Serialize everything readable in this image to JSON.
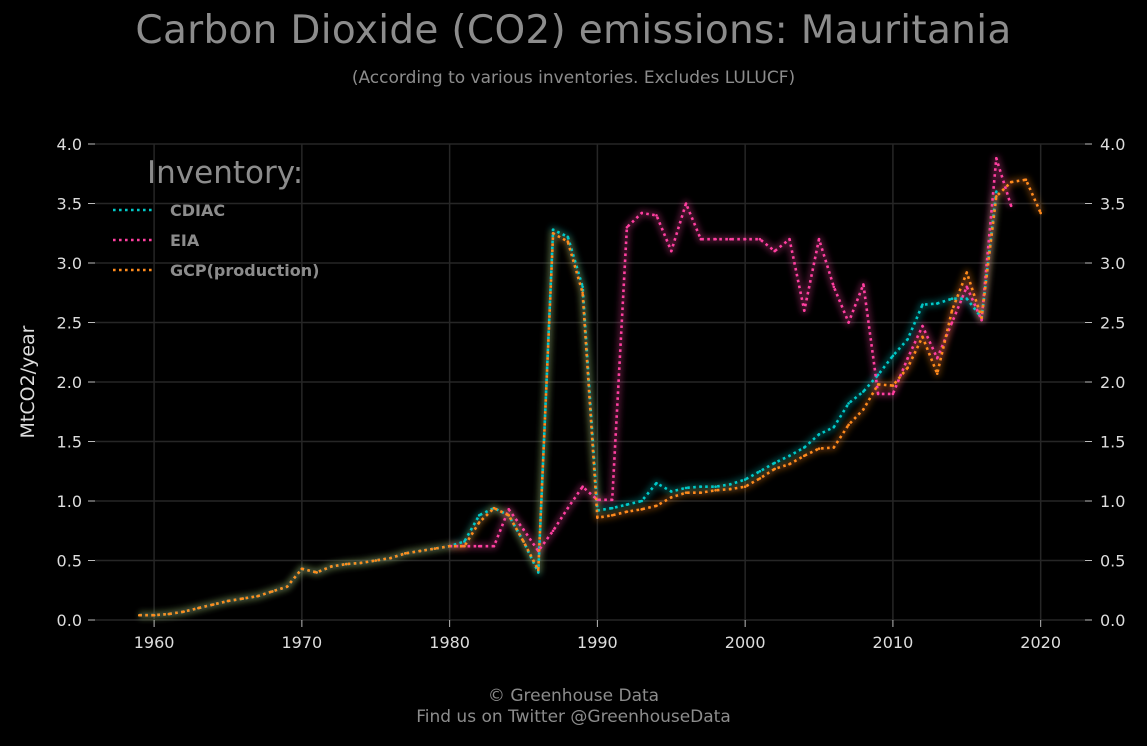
{
  "header": {
    "title": "Carbon Dioxide (CO2) emissions: Mauritania",
    "subtitle": "(According to various inventories. Excludes LULUCF)"
  },
  "footer": {
    "line1": "© Greenhouse Data",
    "line2": "Find us on Twitter @GreenhouseData"
  },
  "chart_data": {
    "type": "line",
    "title": "Carbon Dioxide (CO2) emissions: Mauritania",
    "subtitle": "(According to various inventories. Excludes LULUCF)",
    "xlabel": "",
    "ylabel": "MtCO2/year",
    "xlim": [
      1956,
      2023
    ],
    "ylim": [
      0,
      4
    ],
    "x_ticks": [
      1960,
      1970,
      1980,
      1990,
      2000,
      2010,
      2020
    ],
    "y_ticks": [
      "0.0",
      "0.5",
      "1.0",
      "1.5",
      "2.0",
      "2.5",
      "3.0",
      "3.5",
      "4.0"
    ],
    "grid": true,
    "legend": {
      "title": "Inventory:",
      "placement": "top-left"
    },
    "series": [
      {
        "name": "CDIAC",
        "color": "#00c8c8",
        "x": [
          1959,
          1960,
          1961,
          1962,
          1963,
          1964,
          1965,
          1966,
          1967,
          1968,
          1969,
          1970,
          1971,
          1972,
          1973,
          1974,
          1975,
          1976,
          1977,
          1978,
          1979,
          1980,
          1981,
          1982,
          1983,
          1984,
          1985,
          1986,
          1987,
          1988,
          1989,
          1990,
          1991,
          1992,
          1993,
          1994,
          1995,
          1996,
          1997,
          1998,
          1999,
          2000,
          2001,
          2002,
          2003,
          2004,
          2005,
          2006,
          2007,
          2008,
          2009,
          2010,
          2011,
          2012,
          2013,
          2014,
          2015,
          2016,
          2017
        ],
        "y": [
          0.04,
          0.04,
          0.05,
          0.07,
          0.1,
          0.13,
          0.16,
          0.18,
          0.2,
          0.24,
          0.28,
          0.43,
          0.4,
          0.45,
          0.47,
          0.48,
          0.5,
          0.52,
          0.56,
          0.58,
          0.6,
          0.62,
          0.66,
          0.88,
          0.94,
          0.88,
          0.66,
          0.4,
          3.28,
          3.22,
          2.8,
          0.92,
          0.94,
          0.97,
          1.0,
          1.15,
          1.08,
          1.11,
          1.12,
          1.12,
          1.14,
          1.18,
          1.25,
          1.32,
          1.38,
          1.45,
          1.56,
          1.62,
          1.82,
          1.92,
          2.06,
          2.22,
          2.36,
          2.65,
          2.66,
          2.7,
          2.7,
          2.54,
          3.6
        ]
      },
      {
        "name": "EIA",
        "color": "#ff3fa0",
        "x": [
          1980,
          1981,
          1982,
          1983,
          1984,
          1985,
          1986,
          1987,
          1988,
          1989,
          1990,
          1991,
          1992,
          1993,
          1994,
          1995,
          1996,
          1997,
          1998,
          1999,
          2000,
          2001,
          2002,
          2003,
          2004,
          2005,
          2006,
          2007,
          2008,
          2009,
          2010,
          2011,
          2012,
          2013,
          2014,
          2015,
          2016,
          2017,
          2018
        ],
        "y": [
          0.62,
          0.62,
          0.62,
          0.62,
          0.93,
          0.76,
          0.58,
          0.75,
          0.94,
          1.12,
          1.01,
          1.01,
          3.3,
          3.42,
          3.4,
          3.1,
          3.5,
          3.2,
          3.2,
          3.2,
          3.2,
          3.2,
          3.1,
          3.2,
          2.6,
          3.2,
          2.8,
          2.5,
          2.82,
          1.9,
          1.9,
          2.2,
          2.47,
          2.2,
          2.5,
          2.8,
          2.52,
          3.88,
          3.48
        ]
      },
      {
        "name": "GCP(production)",
        "color": "#ff8a1c",
        "x": [
          1959,
          1960,
          1961,
          1962,
          1963,
          1964,
          1965,
          1966,
          1967,
          1968,
          1969,
          1970,
          1971,
          1972,
          1973,
          1974,
          1975,
          1976,
          1977,
          1978,
          1979,
          1980,
          1981,
          1982,
          1983,
          1984,
          1985,
          1986,
          1987,
          1988,
          1989,
          1990,
          1991,
          1992,
          1993,
          1994,
          1995,
          1996,
          1997,
          1998,
          1999,
          2000,
          2001,
          2002,
          2003,
          2004,
          2005,
          2006,
          2007,
          2008,
          2009,
          2010,
          2011,
          2012,
          2013,
          2014,
          2015,
          2016,
          2017,
          2018,
          2019,
          2020
        ],
        "y": [
          0.04,
          0.04,
          0.05,
          0.07,
          0.1,
          0.13,
          0.16,
          0.18,
          0.2,
          0.24,
          0.28,
          0.43,
          0.4,
          0.45,
          0.47,
          0.48,
          0.5,
          0.52,
          0.56,
          0.58,
          0.6,
          0.62,
          0.62,
          0.82,
          0.94,
          0.88,
          0.66,
          0.42,
          3.25,
          3.18,
          2.75,
          0.86,
          0.88,
          0.91,
          0.93,
          0.96,
          1.03,
          1.07,
          1.07,
          1.09,
          1.1,
          1.12,
          1.19,
          1.27,
          1.31,
          1.38,
          1.44,
          1.45,
          1.64,
          1.77,
          1.98,
          1.97,
          2.12,
          2.38,
          2.07,
          2.6,
          2.92,
          2.54,
          3.56,
          3.68,
          3.7,
          3.42
        ]
      }
    ]
  }
}
